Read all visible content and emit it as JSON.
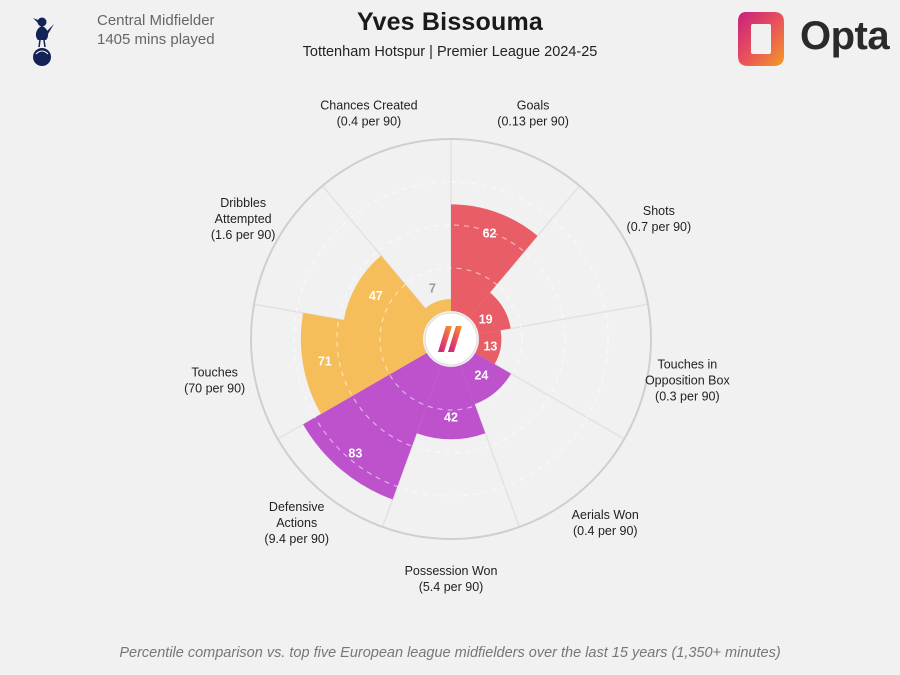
{
  "header": {
    "position": "Central Midfielder",
    "minutes": "1405 mins played",
    "player_name": "Yves Bissouma",
    "subtitle": "Tottenham Hotspur | Premier League 2024-25",
    "brand": "Opta"
  },
  "footnote": "Percentile comparison vs. top five European league midfielders over the last 15 years (1,350+ minutes)",
  "colors": {
    "attacking": "#e8505b",
    "defending": "#b844c9",
    "possession": "#f6b94e",
    "low_value": "#f6b94e",
    "ring": "#cfcfcf",
    "spoke": "#e2e2e2"
  },
  "chart_data": {
    "type": "polar-bar",
    "scale_max": 100,
    "grid_rings": [
      25,
      50,
      75
    ],
    "metrics": [
      {
        "name": "Goals",
        "label_lines": [
          "Goals",
          "(0.13 per 90)"
        ],
        "value": 62,
        "group": "attacking"
      },
      {
        "name": "Shots",
        "label_lines": [
          "Shots",
          "(0.7 per 90)"
        ],
        "value": 19,
        "group": "attacking"
      },
      {
        "name": "Touches in Opposition Box",
        "label_lines": [
          "Touches in",
          "Opposition Box",
          "(0.3 per 90)"
        ],
        "value": 13,
        "group": "attacking"
      },
      {
        "name": "Aerials Won",
        "label_lines": [
          "Aerials Won",
          "(0.4 per 90)"
        ],
        "value": 24,
        "group": "defending"
      },
      {
        "name": "Possession Won",
        "label_lines": [
          "Possession Won",
          "(5.4 per 90)"
        ],
        "value": 42,
        "group": "defending"
      },
      {
        "name": "Defensive Actions",
        "label_lines": [
          "Defensive",
          "Actions",
          "(9.4 per 90)"
        ],
        "value": 83,
        "group": "defending"
      },
      {
        "name": "Touches",
        "label_lines": [
          "Touches",
          "(70 per 90)"
        ],
        "value": 71,
        "group": "possession"
      },
      {
        "name": "Dribbles Attempted",
        "label_lines": [
          "Dribbles",
          "Attempted",
          "(1.6 per 90)"
        ],
        "value": 47,
        "group": "possession"
      },
      {
        "name": "Chances Created",
        "label_lines": [
          "Chances Created",
          "(0.4 per 90)"
        ],
        "value": 7,
        "group": "possession"
      }
    ]
  }
}
